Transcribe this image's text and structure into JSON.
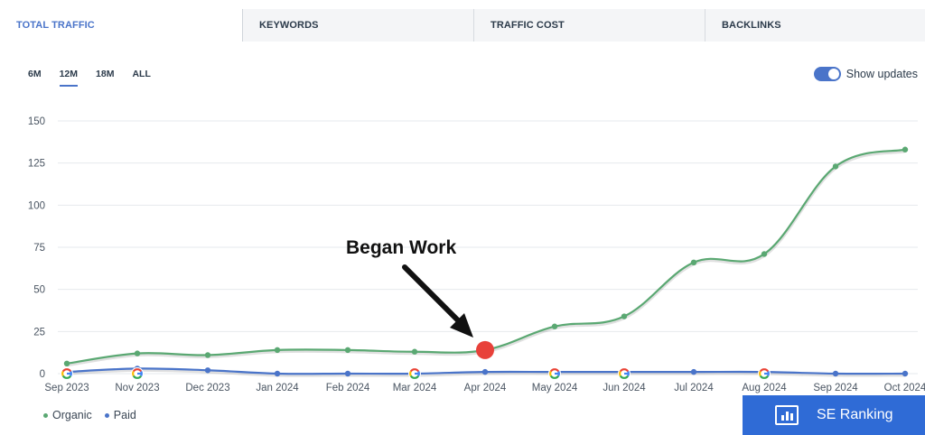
{
  "tabs": [
    {
      "label": "TOTAL TRAFFIC",
      "active": true
    },
    {
      "label": "KEYWORDS",
      "active": false
    },
    {
      "label": "TRAFFIC COST",
      "active": false
    },
    {
      "label": "BACKLINKS",
      "active": false
    }
  ],
  "periods": [
    {
      "label": "6M",
      "active": false
    },
    {
      "label": "12M",
      "active": true
    },
    {
      "label": "18M",
      "active": false
    },
    {
      "label": "ALL",
      "active": false
    }
  ],
  "show_updates": {
    "label": "Show updates",
    "enabled": true
  },
  "legend": [
    {
      "label": "Organic",
      "color": "#5aa872"
    },
    {
      "label": "Paid",
      "color": "#4a74c9"
    }
  ],
  "brand": {
    "label": "SE Ranking",
    "icon": "bar-chart-icon"
  },
  "chart_data": {
    "type": "line",
    "title": "",
    "xlabel": "",
    "ylabel": "",
    "ylim": [
      0,
      150
    ],
    "y_ticks": [
      0,
      25,
      50,
      75,
      100,
      125,
      150
    ],
    "grid": true,
    "x_labels": [
      "Sep 2023",
      "Nov 2023",
      "Dec 2023",
      "Jan 2024",
      "Feb 2024",
      "Mar 2024",
      "Apr 2024",
      "May 2024",
      "Jun 2024",
      "Jul 2024",
      "Aug 2024",
      "Sep 2024",
      "Oct 2024"
    ],
    "series": [
      {
        "name": "Organic",
        "color": "#5aa872",
        "values": [
          6,
          12,
          11,
          14,
          14,
          13,
          14,
          28,
          34,
          66,
          71,
          123,
          133
        ]
      },
      {
        "name": "Paid",
        "color": "#4a74c9",
        "values": [
          1,
          3,
          2,
          0,
          0,
          0,
          1,
          1,
          1,
          1,
          1,
          0,
          0
        ]
      }
    ],
    "google_update_markers": [
      "Sep 2023",
      "Nov 2023",
      "Mar 2024",
      "May 2024",
      "Jun 2024",
      "Aug 2024"
    ],
    "annotation": {
      "text": "Began Work",
      "x": "Apr 2024",
      "y": 14,
      "color": "#e8413a"
    }
  }
}
